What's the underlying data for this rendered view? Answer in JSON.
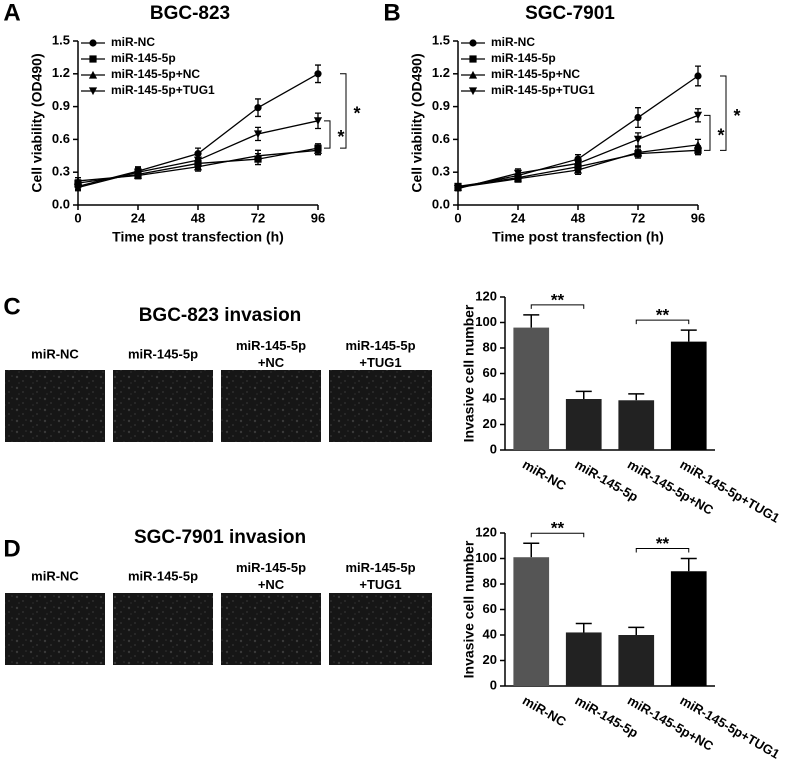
{
  "chart_data": [
    {
      "type": "line",
      "panel": "A",
      "title": "BGC-823",
      "xlabel": "Time post transfection (h)",
      "ylabel": "Cell viability (OD490)",
      "x": [
        0,
        24,
        48,
        72,
        96
      ],
      "xlim": [
        0,
        96
      ],
      "xticks": [
        0,
        24,
        48,
        72,
        96
      ],
      "ylim": [
        0,
        1.5
      ],
      "yticks": [
        {
          "value": 0,
          "label": "0.0"
        },
        0.3,
        0.6,
        0.9,
        1.2,
        1.5
      ],
      "series": [
        {
          "name": "miR-NC",
          "marker": "circle",
          "color": "#000",
          "values": [
            0.17,
            0.31,
            0.47,
            0.89,
            1.2
          ],
          "errors": [
            0.03,
            0.04,
            0.05,
            0.08,
            0.08
          ]
        },
        {
          "name": "miR-145-5p",
          "marker": "square",
          "color": "#000",
          "values": [
            0.2,
            0.28,
            0.38,
            0.42,
            0.52
          ],
          "errors": [
            0.03,
            0.03,
            0.04,
            0.05,
            0.04
          ]
        },
        {
          "name": "miR-145-5p+NC",
          "marker": "triangle-up",
          "color": "#000",
          "values": [
            0.22,
            0.27,
            0.35,
            0.45,
            0.5
          ],
          "errors": [
            0.03,
            0.03,
            0.04,
            0.05,
            0.04
          ]
        },
        {
          "name": "miR-145-5p+TUG1",
          "marker": "triangle-down",
          "color": "#000",
          "values": [
            0.16,
            0.3,
            0.41,
            0.65,
            0.77
          ],
          "errors": [
            0.03,
            0.04,
            0.05,
            0.06,
            0.07
          ]
        }
      ],
      "annotations": [
        "*",
        "*"
      ]
    },
    {
      "type": "line",
      "panel": "B",
      "title": "SGC-7901",
      "xlabel": "Time post transfection (h)",
      "ylabel": "Cell viability (OD490)",
      "x": [
        0,
        24,
        48,
        72,
        96
      ],
      "xlim": [
        0,
        96
      ],
      "xticks": [
        0,
        24,
        48,
        72,
        96
      ],
      "ylim": [
        0,
        1.5
      ],
      "yticks": [
        {
          "value": 0,
          "label": "0.0"
        },
        0.3,
        0.6,
        0.9,
        1.2,
        1.5
      ],
      "series": [
        {
          "name": "miR-NC",
          "marker": "circle",
          "color": "#000",
          "values": [
            0.16,
            0.27,
            0.42,
            0.8,
            1.18
          ],
          "errors": [
            0.02,
            0.04,
            0.04,
            0.09,
            0.09
          ]
        },
        {
          "name": "miR-145-5p",
          "marker": "square",
          "color": "#000",
          "values": [
            0.17,
            0.25,
            0.35,
            0.47,
            0.5
          ],
          "errors": [
            0.02,
            0.03,
            0.04,
            0.04,
            0.04
          ]
        },
        {
          "name": "miR-145-5p+NC",
          "marker": "triangle-up",
          "color": "#000",
          "values": [
            0.16,
            0.24,
            0.32,
            0.48,
            0.55
          ],
          "errors": [
            0.02,
            0.03,
            0.04,
            0.05,
            0.05
          ]
        },
        {
          "name": "miR-145-5p+TUG1",
          "marker": "triangle-down",
          "color": "#000",
          "values": [
            0.15,
            0.29,
            0.38,
            0.6,
            0.82
          ],
          "errors": [
            0.02,
            0.04,
            0.04,
            0.06,
            0.06
          ]
        }
      ],
      "annotations": [
        "*",
        "*"
      ]
    },
    {
      "type": "bar",
      "ylabel": "Invasive cell number",
      "categories": [
        "miR-NC",
        "miR-145-5p",
        "miR-145-5p+NC",
        "miR-145-5p+TUG1"
      ],
      "values": [
        96,
        40,
        39,
        85
      ],
      "errors": [
        10,
        6,
        5,
        9
      ],
      "colors": [
        "#555555",
        "#222222",
        "#222222",
        "#000000"
      ],
      "ylim": [
        0,
        120
      ],
      "yticks": [
        0,
        20,
        40,
        60,
        80,
        100,
        120
      ],
      "annotations": [
        "**",
        "**"
      ]
    },
    {
      "type": "bar",
      "ylabel": "Invasive cell number",
      "categories": [
        "miR-NC",
        "miR-145-5p",
        "miR-145-5p+NC",
        "miR-145-5p+TUG1"
      ],
      "values": [
        101,
        42,
        40,
        90
      ],
      "errors": [
        11,
        7,
        6,
        10
      ],
      "colors": [
        "#555555",
        "#222222",
        "#222222",
        "#000000"
      ],
      "ylim": [
        0,
        120
      ],
      "yticks": [
        0,
        20,
        40,
        60,
        80,
        100,
        120
      ],
      "annotations": [
        "**",
        "**"
      ]
    }
  ],
  "invasion": [
    {
      "panel": "C",
      "title": "BGC-823 invasion",
      "labels": [
        [
          "miR-NC"
        ],
        [
          "miR-145-5p"
        ],
        [
          "miR-145-5p",
          "+NC"
        ],
        [
          "miR-145-5p",
          "+TUG1"
        ]
      ]
    },
    {
      "panel": "D",
      "title": "SGC-7901 invasion",
      "labels": [
        [
          "miR-NC"
        ],
        [
          "miR-145-5p"
        ],
        [
          "miR-145-5p",
          "+NC"
        ],
        [
          "miR-145-5p",
          "+TUG1"
        ]
      ]
    }
  ]
}
